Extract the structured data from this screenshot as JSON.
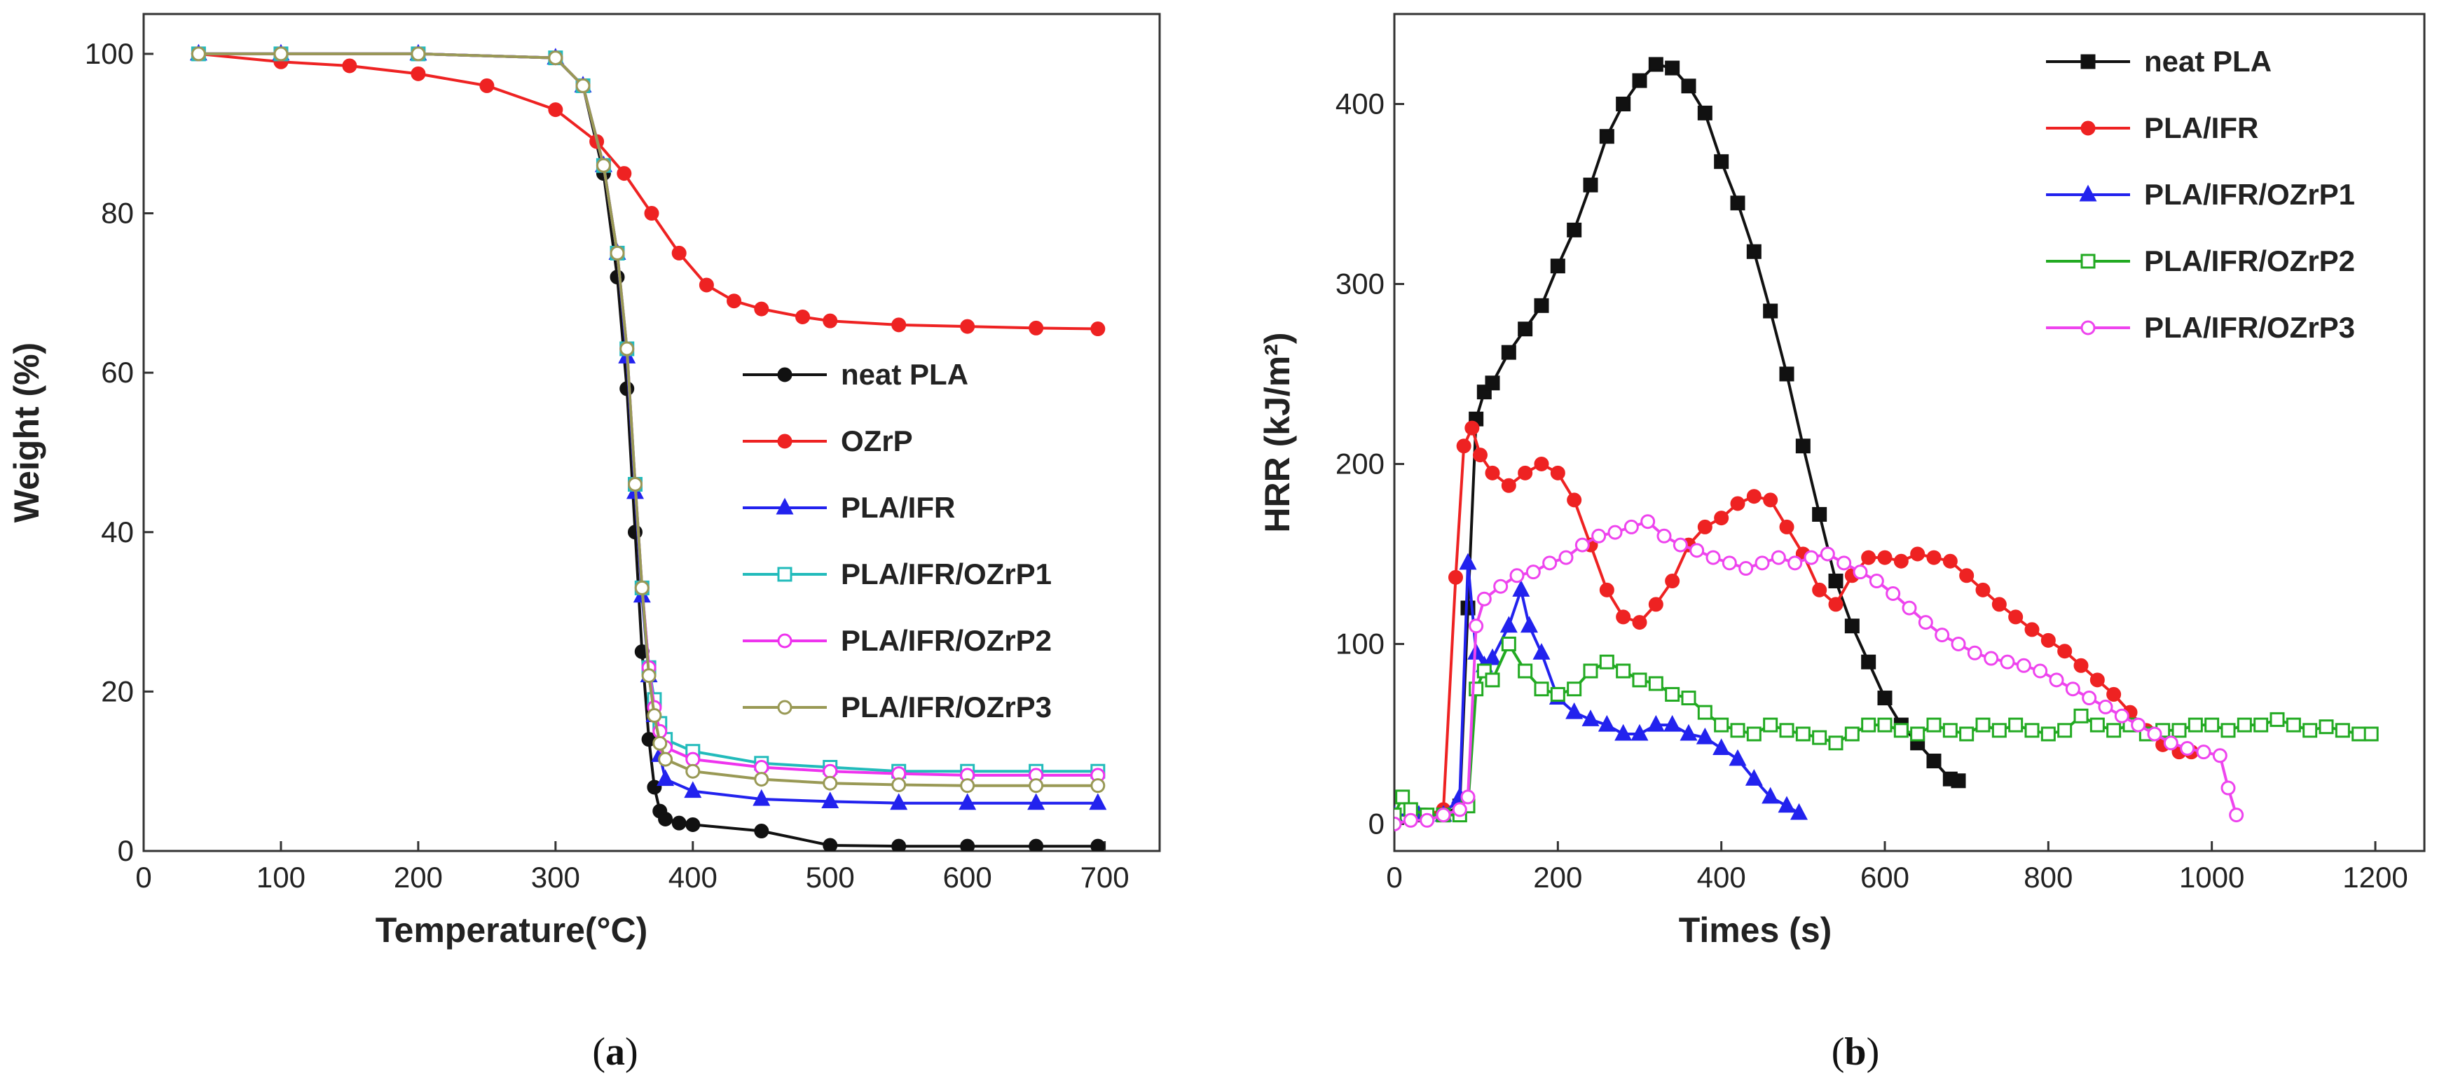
{
  "chart_data": [
    {
      "type": "line",
      "panel": "a",
      "caption_letter": "a",
      "xlabel": "Temperature(°C)",
      "ylabel": "Weight (%)",
      "xlim": [
        0,
        740
      ],
      "ylim": [
        0,
        105
      ],
      "xticks": [
        0,
        100,
        200,
        300,
        400,
        500,
        600,
        700
      ],
      "yticks": [
        0,
        20,
        40,
        60,
        80,
        100
      ],
      "legend_position": "center-right",
      "series": [
        {
          "name": "neat PLA",
          "color": "#111111",
          "marker": "circle-filled",
          "x": [
            40,
            100,
            200,
            300,
            320,
            335,
            345,
            352,
            358,
            363,
            368,
            372,
            376,
            380,
            390,
            400,
            450,
            500,
            550,
            600,
            650,
            695
          ],
          "y": [
            100,
            100,
            100,
            99.5,
            96,
            85,
            72,
            58,
            40,
            25,
            14,
            8,
            5,
            4,
            3.5,
            3.3,
            2.5,
            0.7,
            0.6,
            0.6,
            0.6,
            0.6
          ]
        },
        {
          "name": "OZrP",
          "color": "#ee2222",
          "marker": "circle-filled",
          "x": [
            40,
            100,
            150,
            200,
            250,
            300,
            330,
            350,
            370,
            390,
            410,
            430,
            450,
            480,
            500,
            550,
            600,
            650,
            695
          ],
          "y": [
            100,
            99,
            98.5,
            97.5,
            96,
            93,
            89,
            85,
            80,
            75,
            71,
            69,
            68,
            67,
            66.5,
            66,
            65.8,
            65.6,
            65.5
          ]
        },
        {
          "name": "PLA/IFR",
          "color": "#2222ee",
          "marker": "triangle-filled",
          "x": [
            40,
            100,
            200,
            300,
            320,
            335,
            345,
            352,
            358,
            363,
            368,
            372,
            376,
            380,
            400,
            450,
            500,
            550,
            600,
            650,
            695
          ],
          "y": [
            100,
            100,
            100,
            99.5,
            96,
            86,
            75,
            62,
            45,
            32,
            22,
            17,
            12,
            9,
            7.5,
            6.5,
            6.2,
            6,
            6,
            6,
            6
          ]
        },
        {
          "name": "PLA/IFR/OZrP1",
          "color": "#22bbbb",
          "marker": "square-open",
          "x": [
            40,
            100,
            200,
            300,
            320,
            335,
            345,
            352,
            358,
            363,
            368,
            372,
            376,
            380,
            400,
            450,
            500,
            550,
            600,
            650,
            695
          ],
          "y": [
            100,
            100,
            100,
            99.5,
            96,
            86,
            75,
            63,
            46,
            33,
            23,
            19,
            16,
            14,
            12.5,
            11,
            10.5,
            10,
            10,
            10,
            10
          ]
        },
        {
          "name": "PLA/IFR/OZrP2",
          "color": "#ee33ee",
          "marker": "circle-open",
          "x": [
            40,
            100,
            200,
            300,
            320,
            335,
            345,
            352,
            358,
            363,
            368,
            372,
            376,
            380,
            400,
            450,
            500,
            550,
            600,
            650,
            695
          ],
          "y": [
            100,
            100,
            100,
            99.5,
            96,
            86,
            75,
            63,
            46,
            33,
            23,
            18,
            15,
            13,
            11.5,
            10.5,
            10,
            9.7,
            9.5,
            9.5,
            9.5
          ]
        },
        {
          "name": "PLA/IFR/OZrP3",
          "color": "#999955",
          "marker": "circle-open",
          "x": [
            40,
            100,
            200,
            300,
            320,
            335,
            345,
            352,
            358,
            363,
            368,
            372,
            376,
            380,
            400,
            450,
            500,
            550,
            600,
            650,
            695
          ],
          "y": [
            100,
            100,
            100,
            99.5,
            96,
            86,
            75,
            63,
            46,
            33,
            22,
            17,
            13.5,
            11.5,
            10,
            9,
            8.5,
            8.3,
            8.2,
            8.2,
            8.2
          ]
        }
      ]
    },
    {
      "type": "line",
      "panel": "b",
      "caption_letter": "b",
      "xlabel": "Times (s)",
      "ylabel": "HRR (kJ/m²)",
      "xlim": [
        0,
        1260
      ],
      "ylim": [
        -15,
        450
      ],
      "xticks": [
        0,
        200,
        400,
        600,
        800,
        1000,
        1200
      ],
      "yticks": [
        0,
        100,
        200,
        300,
        400
      ],
      "legend_position": "top-right",
      "series": [
        {
          "name": "neat PLA",
          "color": "#111111",
          "marker": "square-filled",
          "x": [
            0,
            30,
            60,
            80,
            90,
            100,
            110,
            120,
            140,
            160,
            180,
            200,
            220,
            240,
            260,
            280,
            300,
            320,
            340,
            360,
            380,
            400,
            420,
            440,
            460,
            480,
            500,
            520,
            540,
            560,
            580,
            600,
            620,
            640,
            660,
            680,
            690
          ],
          "y": [
            5,
            5,
            5,
            10,
            120,
            225,
            240,
            245,
            262,
            275,
            288,
            310,
            330,
            355,
            382,
            400,
            413,
            422,
            420,
            410,
            395,
            368,
            345,
            318,
            285,
            250,
            210,
            172,
            135,
            110,
            90,
            70,
            55,
            45,
            35,
            25,
            24
          ]
        },
        {
          "name": "PLA/IFR",
          "color": "#ee2222",
          "marker": "circle-filled",
          "x": [
            0,
            40,
            60,
            75,
            85,
            95,
            105,
            120,
            140,
            160,
            180,
            200,
            220,
            240,
            260,
            280,
            300,
            320,
            340,
            360,
            380,
            400,
            420,
            440,
            460,
            480,
            500,
            520,
            540,
            560,
            580,
            600,
            620,
            640,
            660,
            680,
            700,
            720,
            740,
            760,
            780,
            800,
            820,
            840,
            860,
            880,
            900,
            920,
            940,
            960,
            975
          ],
          "y": [
            5,
            5,
            8,
            137,
            210,
            220,
            205,
            195,
            188,
            195,
            200,
            195,
            180,
            155,
            130,
            115,
            112,
            122,
            135,
            155,
            165,
            170,
            178,
            182,
            180,
            165,
            150,
            130,
            122,
            138,
            148,
            148,
            146,
            150,
            148,
            146,
            138,
            130,
            122,
            115,
            108,
            102,
            96,
            88,
            80,
            72,
            62,
            52,
            44,
            40,
            40
          ]
        },
        {
          "name": "PLA/IFR/OZrP1",
          "color": "#2222ee",
          "marker": "triangle-filled",
          "x": [
            0,
            30,
            60,
            80,
            90,
            100,
            110,
            120,
            140,
            155,
            165,
            180,
            200,
            220,
            240,
            260,
            280,
            300,
            320,
            340,
            360,
            380,
            400,
            420,
            440,
            460,
            480,
            495
          ],
          "y": [
            5,
            5,
            5,
            15,
            145,
            95,
            88,
            92,
            110,
            130,
            110,
            95,
            70,
            62,
            58,
            55,
            50,
            50,
            55,
            55,
            50,
            48,
            42,
            36,
            25,
            15,
            10,
            6
          ]
        },
        {
          "name": "PLA/IFR/OZrP2",
          "color": "#22aa22",
          "marker": "square-open",
          "x": [
            0,
            10,
            20,
            40,
            60,
            80,
            90,
            100,
            110,
            120,
            140,
            160,
            180,
            200,
            220,
            240,
            260,
            280,
            300,
            320,
            340,
            360,
            380,
            400,
            420,
            440,
            460,
            480,
            500,
            520,
            540,
            560,
            580,
            600,
            620,
            640,
            660,
            680,
            700,
            720,
            740,
            760,
            780,
            800,
            820,
            840,
            860,
            880,
            900,
            920,
            940,
            960,
            980,
            1000,
            1020,
            1040,
            1060,
            1080,
            1100,
            1120,
            1140,
            1160,
            1180,
            1195
          ],
          "y": [
            5,
            15,
            8,
            5,
            5,
            5,
            10,
            75,
            85,
            80,
            100,
            85,
            75,
            72,
            75,
            85,
            90,
            85,
            80,
            78,
            72,
            70,
            62,
            55,
            52,
            50,
            55,
            52,
            50,
            48,
            45,
            50,
            55,
            55,
            52,
            50,
            55,
            52,
            50,
            55,
            52,
            55,
            52,
            50,
            52,
            60,
            55,
            52,
            55,
            50,
            52,
            52,
            55,
            55,
            52,
            55,
            55,
            58,
            55,
            52,
            54,
            52,
            50,
            50
          ]
        },
        {
          "name": "PLA/IFR/OZrP3",
          "color": "#ee44ee",
          "marker": "circle-open",
          "x": [
            0,
            20,
            40,
            60,
            80,
            90,
            100,
            110,
            130,
            150,
            170,
            190,
            210,
            230,
            250,
            270,
            290,
            310,
            330,
            350,
            370,
            390,
            410,
            430,
            450,
            470,
            490,
            510,
            530,
            550,
            570,
            590,
            610,
            630,
            650,
            670,
            690,
            710,
            730,
            750,
            770,
            790,
            810,
            830,
            850,
            870,
            890,
            910,
            930,
            950,
            970,
            990,
            1010,
            1020,
            1030
          ],
          "y": [
            0,
            2,
            2,
            5,
            8,
            15,
            110,
            125,
            132,
            138,
            140,
            145,
            148,
            155,
            160,
            162,
            165,
            168,
            160,
            155,
            152,
            148,
            145,
            142,
            145,
            148,
            145,
            148,
            150,
            145,
            140,
            135,
            128,
            120,
            112,
            105,
            100,
            95,
            92,
            90,
            88,
            85,
            80,
            75,
            70,
            65,
            60,
            55,
            50,
            45,
            42,
            40,
            38,
            20,
            5
          ]
        }
      ]
    }
  ]
}
